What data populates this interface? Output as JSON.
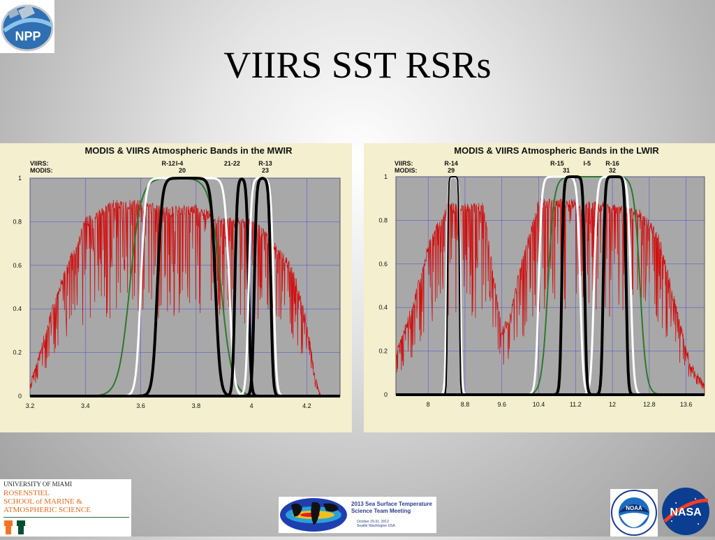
{
  "slide": {
    "title": "VIIRS SST RSRs",
    "logos": {
      "top_left": "npp-logo",
      "bottom_left": {
        "line1": "UNIVERSITY OF MIAMI",
        "line2": "ROSENSTIEL",
        "line3": "SCHOOL of MARINE &",
        "line4": "ATMOSPHERIC SCIENCE"
      },
      "bottom_center": {
        "line1": "2013 Sea Surface Temperature",
        "line2": "Science Team Meeting",
        "line3": "October 29-31, 2013",
        "line4": "Seattle Washington  USA"
      },
      "bottom_right": [
        "noaa-logo",
        "nasa-logo"
      ]
    }
  },
  "chart_data": [
    {
      "type": "line",
      "title": "MODIS & VIIRS Atmospheric Bands in the MWIR",
      "row_labels": [
        "VIIRS:",
        "MODIS:"
      ],
      "viirs_labels": [
        {
          "text": "R-12",
          "x": 3.7
        },
        {
          "text": "I-4",
          "x": 3.74
        },
        {
          "text": "21-22",
          "x": 3.93
        },
        {
          "text": "R-13",
          "x": 4.05
        }
      ],
      "modis_labels": [
        {
          "text": "20",
          "x": 3.75
        },
        {
          "text": "23",
          "x": 4.05
        }
      ],
      "xlim": [
        3.2,
        4.32
      ],
      "ylim": [
        0,
        1
      ],
      "xticks": [
        3.2,
        3.4,
        3.6,
        3.8,
        4,
        4.2
      ],
      "xtick_labels": [
        "3.2",
        "3.4",
        "3.6",
        "3.8",
        "4",
        "4.2"
      ],
      "yticks": [
        0,
        0.2,
        0.4,
        0.6,
        0.8,
        1
      ],
      "ytick_labels": [
        "0",
        "0.2",
        "0.4",
        "0.6",
        "0.8",
        "1"
      ],
      "grid": true,
      "bands": [
        {
          "name": "R-12",
          "color": "#2a7a2a",
          "width": 2,
          "x0": 3.56,
          "x1": 3.89,
          "e": 0.06
        },
        {
          "name": "I-4",
          "color": "#ffffff",
          "width": 3,
          "x0": 3.6,
          "x1": 3.92,
          "e": 0.025
        },
        {
          "name": "20",
          "color": "#000000",
          "width": 4,
          "x0": 3.66,
          "x1": 3.87,
          "e": 0.025
        },
        {
          "name": "21-22",
          "color": "#000000",
          "width": 4,
          "x0": 3.94,
          "x1": 3.99,
          "e": 0.012
        },
        {
          "name": "R-13",
          "color": "#ffffff",
          "width": 3,
          "x0": 3.99,
          "x1": 4.08,
          "e": 0.015
        },
        {
          "name": "23",
          "color": "#000000",
          "width": 4,
          "x0": 4.01,
          "x1": 4.07,
          "e": 0.012
        }
      ],
      "transmittance": {
        "color": "#d01010",
        "envelope": [
          [
            3.2,
            0.06
          ],
          [
            3.3,
            0.5
          ],
          [
            3.4,
            0.82
          ],
          [
            3.5,
            0.9
          ],
          [
            3.6,
            0.9
          ],
          [
            3.7,
            0.87
          ],
          [
            3.8,
            0.88
          ],
          [
            3.9,
            0.82
          ],
          [
            4.0,
            0.82
          ],
          [
            4.05,
            0.76
          ],
          [
            4.15,
            0.6
          ],
          [
            4.2,
            0.35
          ],
          [
            4.23,
            0.1
          ],
          [
            4.25,
            0
          ]
        ]
      }
    },
    {
      "type": "line",
      "title": "MODIS & VIIRS Atmospheric Bands in the LWIR",
      "row_labels": [
        "VIIRS:",
        "MODIS:"
      ],
      "viirs_labels": [
        {
          "text": "R-14",
          "x": 8.5
        },
        {
          "text": "R-15",
          "x": 10.8
        },
        {
          "text": "I-5",
          "x": 11.45
        },
        {
          "text": "R-16",
          "x": 12.0
        }
      ],
      "modis_labels": [
        {
          "text": "29",
          "x": 8.5
        },
        {
          "text": "31",
          "x": 11.0
        },
        {
          "text": "32",
          "x": 12.0
        }
      ],
      "xlim": [
        7.3,
        14.0
      ],
      "ylim": [
        0,
        1
      ],
      "xticks": [
        8,
        8.8,
        9.6,
        10.4,
        11.2,
        12,
        12.8,
        13.6
      ],
      "xtick_labels": [
        "8",
        "8.8",
        "9.6",
        "10.4",
        "11.2",
        "12",
        "12.8",
        "13.6"
      ],
      "yticks": [
        0,
        0.2,
        0.4,
        0.6,
        0.8,
        1
      ],
      "ytick_labels": [
        "0",
        "0.2",
        "0.4",
        "0.6",
        "0.8",
        "1"
      ],
      "grid": true,
      "bands": [
        {
          "name": "R-15",
          "color": "#2a7a2a",
          "width": 2,
          "x0": 10.6,
          "x1": 12.6,
          "e": 0.2
        },
        {
          "name": "R-14",
          "color": "#ffffff",
          "width": 3,
          "x0": 8.4,
          "x1": 8.7,
          "e": 0.05
        },
        {
          "name": "29",
          "color": "#000000",
          "width": 2,
          "x0": 8.42,
          "x1": 8.68,
          "e": 0.03
        },
        {
          "name": "R-15",
          "color": "#ffffff",
          "width": 3,
          "x0": 10.4,
          "x1": 11.3,
          "e": 0.1
        },
        {
          "name": "I-5",
          "color": "#ffffff",
          "width": 3,
          "x0": 11.6,
          "x1": 12.4,
          "e": 0.1
        },
        {
          "name": "31",
          "color": "#000000",
          "width": 4,
          "x0": 10.9,
          "x1": 11.4,
          "e": 0.06
        },
        {
          "name": "32",
          "color": "#000000",
          "width": 4,
          "x0": 11.8,
          "x1": 12.3,
          "e": 0.06
        }
      ],
      "transmittance": {
        "color": "#d01010",
        "envelope": [
          [
            7.3,
            0.2
          ],
          [
            7.7,
            0.45
          ],
          [
            8.0,
            0.7
          ],
          [
            8.4,
            0.88
          ],
          [
            8.8,
            0.88
          ],
          [
            9.2,
            0.88
          ],
          [
            9.4,
            0.6
          ],
          [
            9.6,
            0.3
          ],
          [
            9.8,
            0.4
          ],
          [
            10.0,
            0.6
          ],
          [
            10.4,
            0.9
          ],
          [
            11.0,
            0.9
          ],
          [
            12.0,
            0.88
          ],
          [
            12.6,
            0.85
          ],
          [
            13.0,
            0.75
          ],
          [
            13.4,
            0.4
          ],
          [
            13.7,
            0.15
          ],
          [
            14.0,
            0.05
          ]
        ]
      }
    }
  ]
}
